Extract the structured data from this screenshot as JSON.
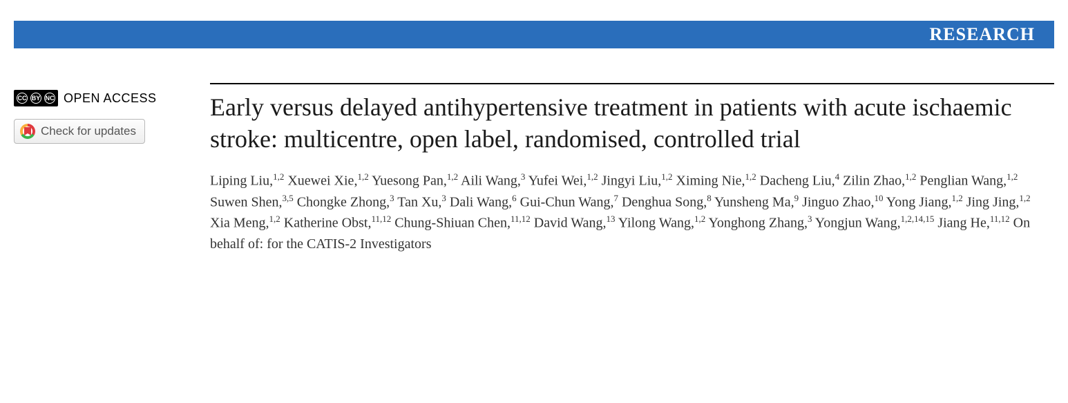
{
  "header": {
    "section_label": "RESEARCH",
    "bar_color": "#2a6ebb",
    "text_color": "#ffffff"
  },
  "sidebar": {
    "open_access_label": "OPEN ACCESS",
    "cc_parts": [
      "CC",
      "BY",
      "NC"
    ],
    "check_updates_label": "Check for updates"
  },
  "article": {
    "title": "Early versus delayed antihypertensive treatment in patients with acute ischaemic stroke: multicentre, open label, randomised, controlled trial",
    "authors": [
      {
        "name": "Liping Liu",
        "affil": "1,2"
      },
      {
        "name": "Xuewei Xie",
        "affil": "1,2"
      },
      {
        "name": "Yuesong Pan",
        "affil": "1,2"
      },
      {
        "name": "Aili Wang",
        "affil": "3"
      },
      {
        "name": "Yufei Wei",
        "affil": "1,2"
      },
      {
        "name": "Jingyi Liu",
        "affil": "1,2"
      },
      {
        "name": "Ximing Nie",
        "affil": "1,2"
      },
      {
        "name": "Dacheng Liu",
        "affil": "4"
      },
      {
        "name": "Zilin Zhao",
        "affil": "1,2"
      },
      {
        "name": "Penglian Wang",
        "affil": "1,2"
      },
      {
        "name": "Suwen Shen",
        "affil": "3,5"
      },
      {
        "name": "Chongke Zhong",
        "affil": "3"
      },
      {
        "name": "Tan Xu",
        "affil": "3"
      },
      {
        "name": "Dali Wang",
        "affil": "6"
      },
      {
        "name": "Gui-Chun Wang",
        "affil": "7"
      },
      {
        "name": "Denghua Song",
        "affil": "8"
      },
      {
        "name": "Yunsheng Ma",
        "affil": "9"
      },
      {
        "name": "Jinguo Zhao",
        "affil": "10"
      },
      {
        "name": "Yong Jiang",
        "affil": "1,2"
      },
      {
        "name": "Jing Jing",
        "affil": "1,2"
      },
      {
        "name": "Xia Meng",
        "affil": "1,2"
      },
      {
        "name": "Katherine Obst",
        "affil": "11,12"
      },
      {
        "name": "Chung-Shiuan Chen",
        "affil": "11,12"
      },
      {
        "name": "David Wang",
        "affil": "13"
      },
      {
        "name": "Yilong Wang",
        "affil": "1,2"
      },
      {
        "name": "Yonghong Zhang",
        "affil": "3"
      },
      {
        "name": "Yongjun Wang",
        "affil": "1,2,14,15"
      },
      {
        "name": "Jiang He",
        "affil": "11,12"
      }
    ],
    "on_behalf": "On behalf of: for the CATIS-2 Investigators"
  },
  "styling": {
    "title_fontsize": 36,
    "author_fontsize": 20,
    "title_color": "#1a1a1a",
    "rule_color": "#000000",
    "background": "#ffffff"
  }
}
